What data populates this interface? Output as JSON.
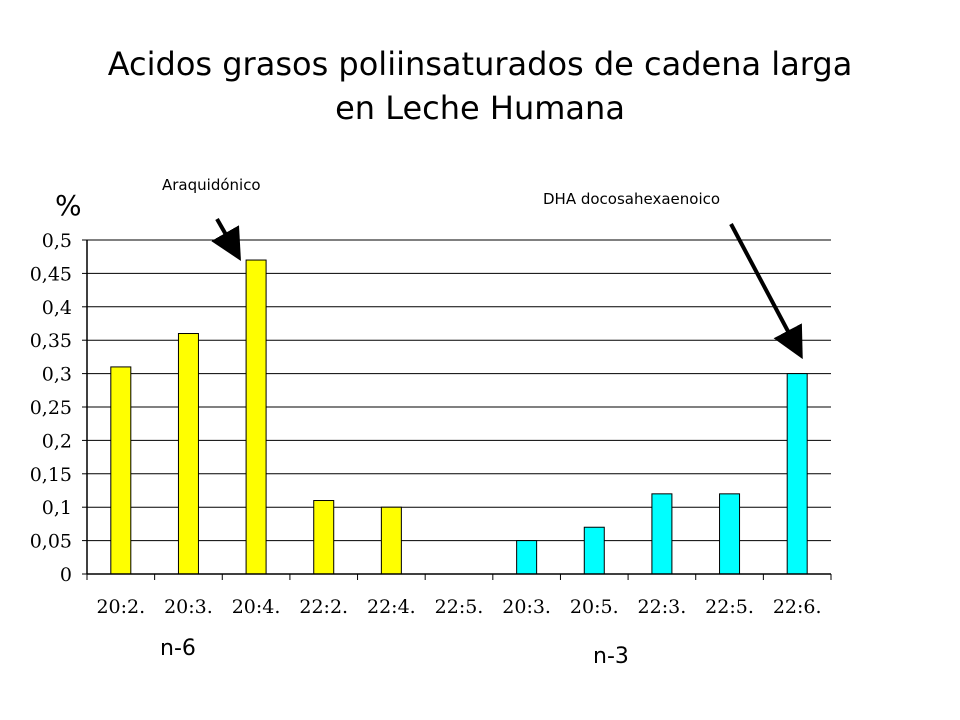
{
  "slide": {
    "title_line1": "Acidos grasos poliinsaturados de cadena larga",
    "title_line2": "en Leche Humana"
  },
  "annotations": {
    "arachidonic": "Araquidónico",
    "dha": "DHA docosahexaenoico"
  },
  "groups": {
    "n6": "n-6",
    "n3": "n-3"
  },
  "colors": {
    "n6_bar": "#ffff00",
    "n3_bar": "#00ffff",
    "bar_outline": "#000000",
    "grid": "#000000",
    "arrow": "#000000"
  },
  "chart_data": {
    "type": "bar",
    "title": "",
    "xlabel": "",
    "ylabel": "%",
    "ylim": [
      0,
      0.5
    ],
    "yticks": [
      "0",
      "0,05",
      "0,1",
      "0,15",
      "0,2",
      "0,25",
      "0,3",
      "0,35",
      "0,4",
      "0,45",
      "0,5"
    ],
    "grid": true,
    "categories": [
      "20:2.",
      "20:3.",
      "20:4.",
      "22:2.",
      "22:4.",
      "22:5.",
      "20:3.",
      "20:5.",
      "22:3.",
      "22:5.",
      "22:6."
    ],
    "values": [
      0.31,
      0.36,
      0.47,
      0.11,
      0.1,
      null,
      0.05,
      0.07,
      0.12,
      0.12,
      0.3
    ],
    "groups": [
      "n-6",
      "n-6",
      "n-6",
      "n-6",
      "n-6",
      "n-6",
      "n-3",
      "n-3",
      "n-3",
      "n-3",
      "n-3"
    ]
  }
}
